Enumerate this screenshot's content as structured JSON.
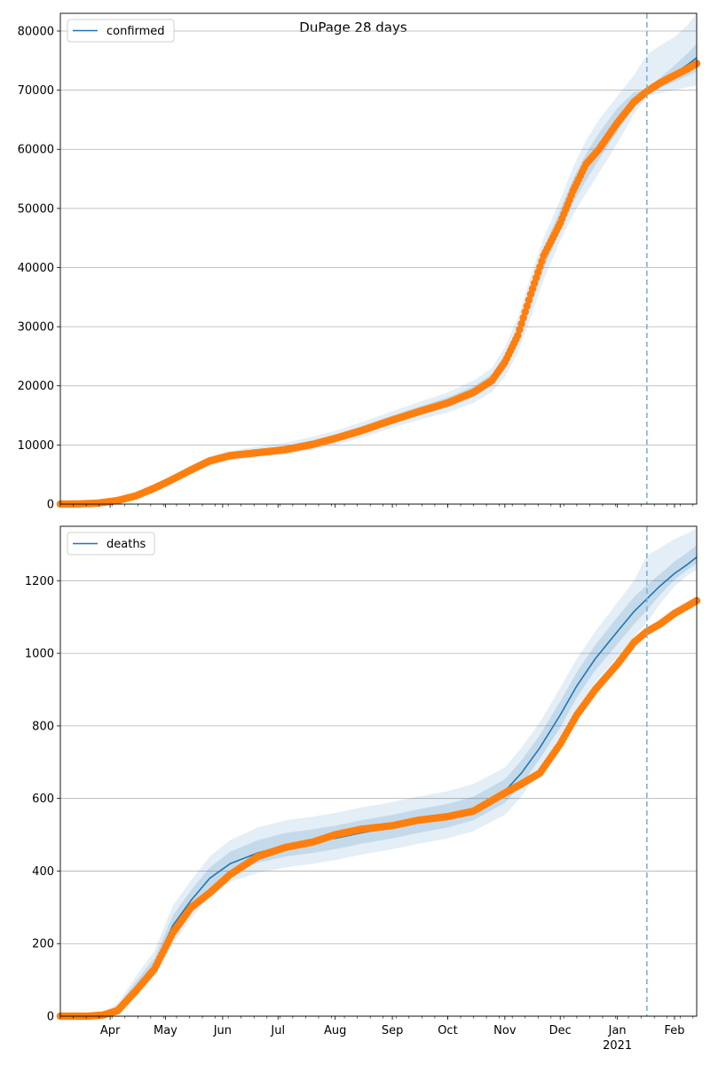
{
  "figure": {
    "title": "DuPage 28 days"
  },
  "chart_data": [
    {
      "type": "line",
      "legend": [
        "confirmed"
      ],
      "legend_placement": "top-left",
      "grid": "y",
      "ylim": [
        0,
        83000
      ],
      "yticks": [
        0,
        10000,
        20000,
        30000,
        40000,
        50000,
        60000,
        70000,
        80000
      ],
      "xrange": [
        "2020-03-05",
        "2021-02-13"
      ],
      "forecast_start": "2021-01-17",
      "model_series": {
        "name": "confirmed",
        "dates": [
          "2020-03-05",
          "2020-03-15",
          "2020-03-25",
          "2020-04-05",
          "2020-04-15",
          "2020-04-25",
          "2020-05-05",
          "2020-05-15",
          "2020-05-25",
          "2020-06-05",
          "2020-06-20",
          "2020-07-05",
          "2020-07-20",
          "2020-08-01",
          "2020-08-15",
          "2020-09-01",
          "2020-09-15",
          "2020-10-01",
          "2020-10-15",
          "2020-10-25",
          "2020-11-01",
          "2020-11-08",
          "2020-11-15",
          "2020-11-22",
          "2020-12-01",
          "2020-12-08",
          "2020-12-15",
          "2020-12-22",
          "2021-01-01",
          "2021-01-10",
          "2021-01-17",
          "2021-01-24",
          "2021-02-01",
          "2021-02-08",
          "2021-02-13"
        ],
        "values": [
          0,
          50,
          200,
          700,
          1500,
          2800,
          4300,
          5900,
          7300,
          8200,
          8800,
          9400,
          10300,
          11200,
          12500,
          14300,
          15700,
          17200,
          19000,
          21000,
          24000,
          28500,
          35000,
          41500,
          48000,
          53000,
          57000,
          60500,
          65000,
          68300,
          69700,
          71200,
          72800,
          74300,
          75500
        ],
        "bands": {
          "lower_outer": [
            0,
            0,
            100,
            500,
            1100,
            2300,
            3700,
            5200,
            6500,
            7400,
            7900,
            8400,
            9200,
            10000,
            11200,
            12900,
            14200,
            15500,
            17100,
            19000,
            21500,
            25500,
            31500,
            38000,
            44500,
            49000,
            52500,
            56000,
            61000,
            66000,
            69000,
            69500,
            70000,
            70500,
            70800
          ],
          "lower_inner": [
            0,
            20,
            150,
            600,
            1300,
            2550,
            4000,
            5550,
            6900,
            7800,
            8350,
            8900,
            9750,
            10600,
            11850,
            13600,
            14950,
            16350,
            18050,
            20000,
            22750,
            27000,
            33250,
            39750,
            46250,
            51000,
            54750,
            58250,
            63000,
            67150,
            69350,
            70350,
            71400,
            72400,
            73150
          ],
          "upper_inner": [
            0,
            80,
            250,
            800,
            1700,
            3050,
            4600,
            6250,
            7700,
            8600,
            9250,
            9900,
            10850,
            11800,
            13150,
            15000,
            16450,
            18050,
            19950,
            22000,
            25250,
            30000,
            36750,
            43250,
            49750,
            55000,
            59250,
            62750,
            67000,
            69650,
            70050,
            72050,
            74200,
            76200,
            77850
          ],
          "upper_outer": [
            0,
            100,
            300,
            900,
            1900,
            3300,
            4900,
            6600,
            8100,
            9000,
            9700,
            10400,
            11400,
            12400,
            13800,
            15700,
            17200,
            18900,
            20900,
            23000,
            26500,
            31500,
            38500,
            45000,
            51500,
            57000,
            61500,
            65000,
            69000,
            72500,
            76000,
            77500,
            79000,
            81000,
            83000
          ]
        }
      },
      "observed": {
        "dates": [
          "2020-03-05",
          "2020-03-15",
          "2020-03-25",
          "2020-04-05",
          "2020-04-15",
          "2020-04-25",
          "2020-05-05",
          "2020-05-15",
          "2020-05-25",
          "2020-06-05",
          "2020-06-20",
          "2020-07-05",
          "2020-07-20",
          "2020-08-01",
          "2020-08-15",
          "2020-09-01",
          "2020-09-15",
          "2020-10-01",
          "2020-10-15",
          "2020-10-25",
          "2020-11-01",
          "2020-11-08",
          "2020-11-15",
          "2020-11-22",
          "2020-12-01",
          "2020-12-08",
          "2020-12-15",
          "2020-12-22",
          "2021-01-01",
          "2021-01-10",
          "2021-01-17",
          "2021-01-24",
          "2021-02-01",
          "2021-02-08",
          "2021-02-13"
        ],
        "values": [
          0,
          30,
          150,
          600,
          1400,
          2700,
          4200,
          5800,
          7300,
          8200,
          8700,
          9200,
          10100,
          11100,
          12400,
          14200,
          15600,
          17100,
          18900,
          20900,
          24000,
          28500,
          35500,
          42000,
          47500,
          53000,
          57500,
          60000,
          64500,
          68000,
          69800,
          71200,
          72500,
          73600,
          74500
        ]
      },
      "ticks": [
        "Apr",
        "May",
        "Jun",
        "Jul",
        "Aug",
        "Sep",
        "Oct",
        "Nov",
        "Dec",
        "Jan",
        "Feb"
      ],
      "tick_dates": [
        "2020-04-01",
        "2020-05-01",
        "2020-06-01",
        "2020-07-01",
        "2020-08-01",
        "2020-09-01",
        "2020-10-01",
        "2020-11-01",
        "2020-12-01",
        "2021-01-01",
        "2021-02-01"
      ],
      "year_label": ""
    },
    {
      "type": "line",
      "legend": [
        "deaths"
      ],
      "legend_placement": "top-left",
      "grid": "y",
      "ylim": [
        0,
        1350
      ],
      "yticks": [
        0,
        200,
        400,
        600,
        800,
        1000,
        1200
      ],
      "xrange": [
        "2020-03-05",
        "2021-02-13"
      ],
      "forecast_start": "2021-01-17",
      "model_series": {
        "name": "deaths",
        "dates": [
          "2020-03-05",
          "2020-03-20",
          "2020-03-28",
          "2020-04-05",
          "2020-04-15",
          "2020-04-25",
          "2020-05-05",
          "2020-05-15",
          "2020-05-25",
          "2020-06-05",
          "2020-06-20",
          "2020-07-05",
          "2020-07-20",
          "2020-08-01",
          "2020-08-15",
          "2020-09-01",
          "2020-09-15",
          "2020-10-01",
          "2020-10-15",
          "2020-11-01",
          "2020-11-10",
          "2020-11-20",
          "2020-12-01",
          "2020-12-10",
          "2020-12-20",
          "2021-01-01",
          "2021-01-10",
          "2021-01-17",
          "2021-01-24",
          "2021-02-01",
          "2021-02-08",
          "2021-02-13"
        ],
        "values": [
          0,
          0,
          5,
          20,
          80,
          140,
          250,
          320,
          380,
          420,
          450,
          470,
          480,
          490,
          505,
          520,
          535,
          550,
          570,
          620,
          670,
          740,
          830,
          910,
          985,
          1060,
          1115,
          1150,
          1185,
          1220,
          1245,
          1265
        ],
        "bands": {
          "lower_outer": [
            0,
            0,
            0,
            10,
            55,
            110,
            200,
            270,
            330,
            370,
            395,
            410,
            420,
            430,
            445,
            460,
            475,
            490,
            510,
            555,
            605,
            680,
            760,
            845,
            920,
            990,
            1045,
            1085,
            1135,
            1185,
            1215,
            1230
          ],
          "lower_inner": [
            0,
            0,
            2,
            15,
            68,
            125,
            225,
            295,
            355,
            395,
            423,
            440,
            450,
            460,
            475,
            490,
            505,
            520,
            540,
            588,
            638,
            710,
            795,
            878,
            953,
            1025,
            1080,
            1118,
            1160,
            1203,
            1230,
            1248
          ],
          "upper_inner": [
            0,
            0,
            8,
            28,
            95,
            160,
            278,
            348,
            410,
            453,
            485,
            505,
            515,
            525,
            540,
            555,
            570,
            585,
            605,
            653,
            705,
            775,
            868,
            948,
            1023,
            1100,
            1155,
            1188,
            1218,
            1253,
            1278,
            1298
          ],
          "upper_outer": [
            0,
            0,
            10,
            35,
            110,
            180,
            305,
            375,
            440,
            485,
            520,
            540,
            550,
            560,
            575,
            590,
            605,
            620,
            640,
            685,
            740,
            810,
            905,
            985,
            1060,
            1140,
            1200,
            1270,
            1290,
            1315,
            1330,
            1345
          ]
        }
      },
      "observed": {
        "dates": [
          "2020-03-05",
          "2020-03-20",
          "2020-03-28",
          "2020-04-05",
          "2020-04-15",
          "2020-04-25",
          "2020-05-05",
          "2020-05-15",
          "2020-05-25",
          "2020-06-05",
          "2020-06-20",
          "2020-07-05",
          "2020-07-20",
          "2020-08-01",
          "2020-08-15",
          "2020-09-01",
          "2020-09-15",
          "2020-10-01",
          "2020-10-15",
          "2020-11-01",
          "2020-11-10",
          "2020-11-20",
          "2020-12-01",
          "2020-12-10",
          "2020-12-20",
          "2021-01-01",
          "2021-01-10",
          "2021-01-17",
          "2021-01-24",
          "2021-02-01",
          "2021-02-08",
          "2021-02-13"
        ],
        "values": [
          0,
          0,
          3,
          15,
          70,
          130,
          230,
          300,
          340,
          390,
          440,
          465,
          480,
          500,
          515,
          525,
          540,
          550,
          565,
          615,
          640,
          670,
          750,
          830,
          900,
          970,
          1030,
          1060,
          1080,
          1110,
          1130,
          1145
        ]
      },
      "ticks": [
        "Apr",
        "May",
        "Jun",
        "Jul",
        "Aug",
        "Sep",
        "Oct",
        "Nov",
        "Dec",
        "Jan",
        "Feb"
      ],
      "tick_dates": [
        "2020-04-01",
        "2020-05-01",
        "2020-06-01",
        "2020-07-01",
        "2020-08-01",
        "2020-09-01",
        "2020-10-01",
        "2020-11-01",
        "2020-12-01",
        "2021-01-01",
        "2021-02-01"
      ],
      "year_label": "2021"
    }
  ],
  "colors": {
    "model": "#1f77b4",
    "observed": "#ff7f0e",
    "band": "#1f77b4",
    "grid": "#b0b0b0",
    "forecast_line": "#7fb1d3"
  }
}
